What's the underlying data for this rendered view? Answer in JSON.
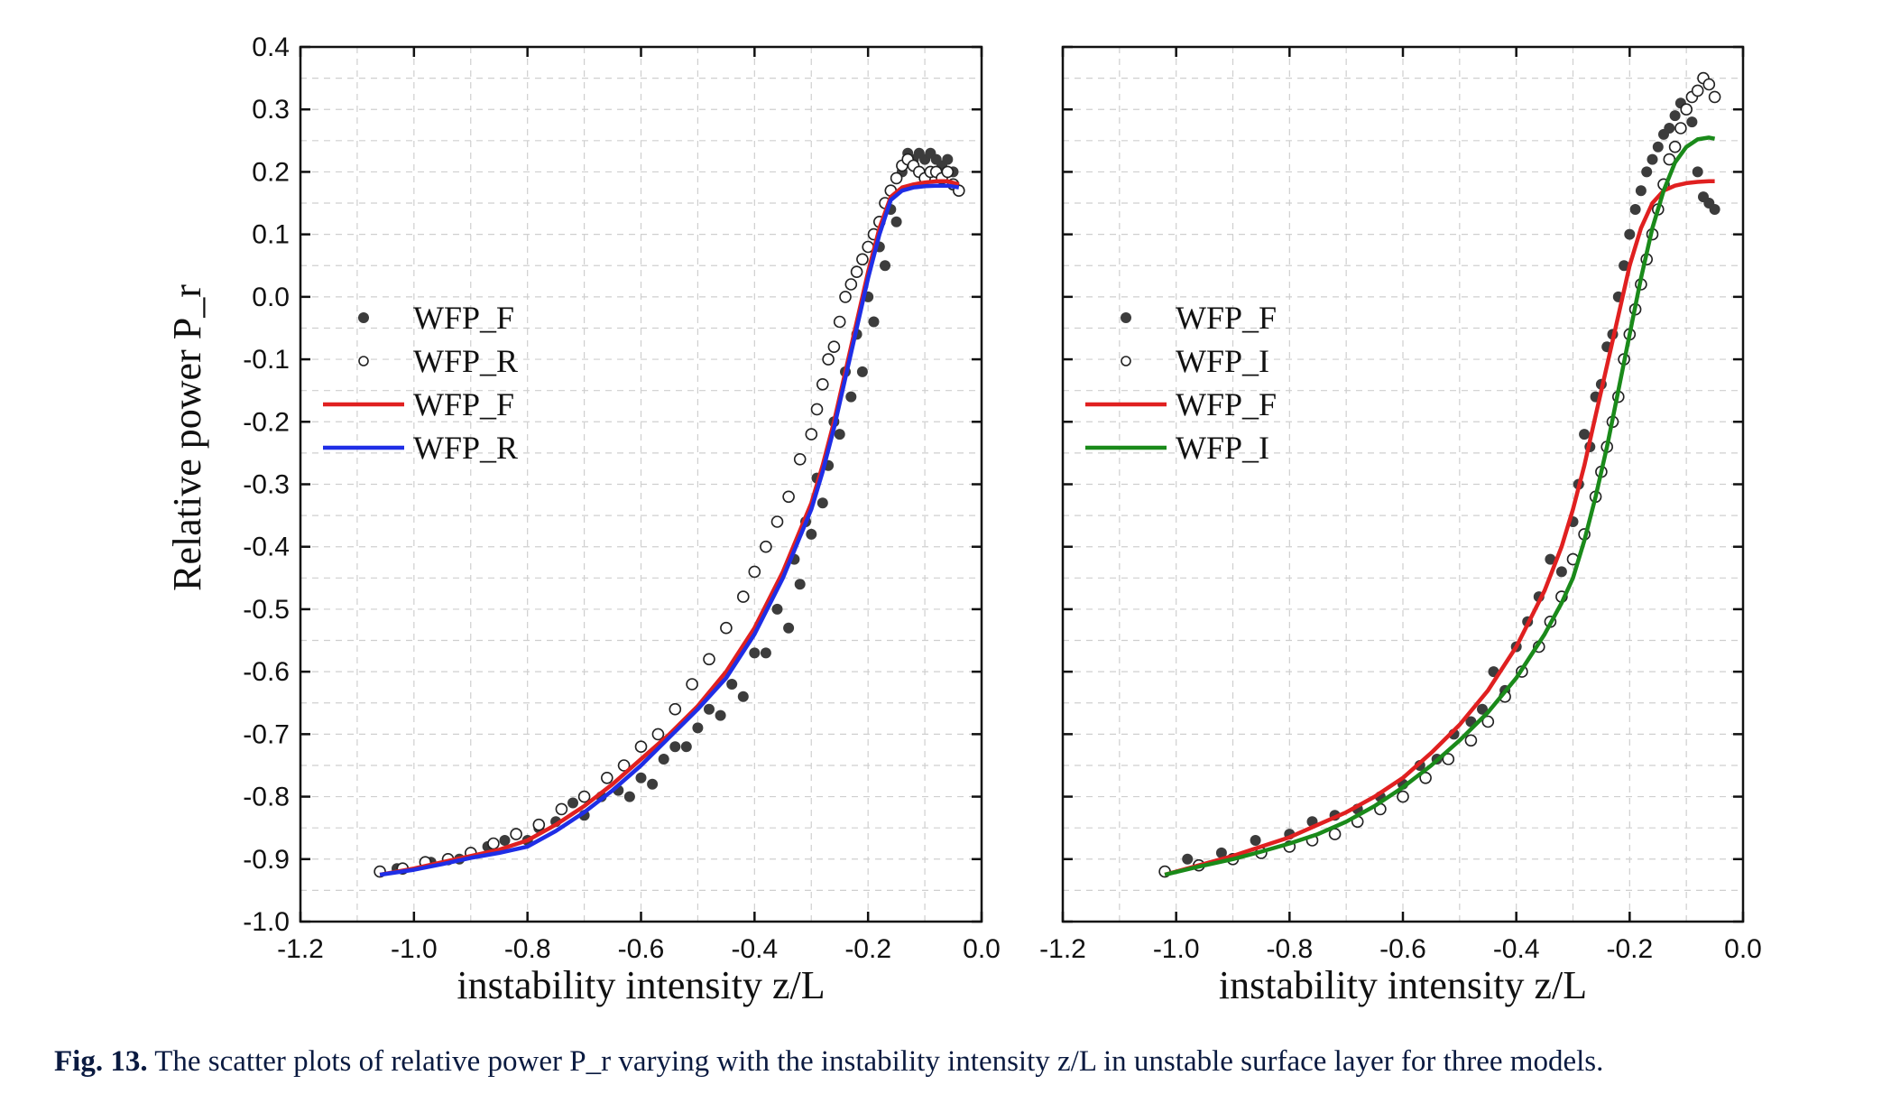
{
  "caption": {
    "label": "Fig. 13.",
    "text": "The scatter plots of relative power P_r varying with the instability intensity z/L in unstable surface layer for three models."
  },
  "shared_ylabel": "Relative power P_r",
  "chart_data": [
    {
      "type": "scatter",
      "xlabel": "instability intensity z/L",
      "ylabel": "Relative power P_r",
      "xlim": [
        -1.2,
        0.0
      ],
      "ylim": [
        -1.0,
        0.4
      ],
      "x_ticks": [
        "-1.2",
        "-1.0",
        "-0.8",
        "-0.6",
        "-0.4",
        "-0.2",
        "0.0"
      ],
      "y_ticks": [
        "0.4",
        "0.3",
        "0.2",
        "0.1",
        "0.0",
        "-0.1",
        "-0.2",
        "-0.3",
        "-0.4",
        "-0.5",
        "-0.6",
        "-0.7",
        "-0.8",
        "-0.9",
        "-1.0"
      ],
      "grid": true,
      "legend_placement": "upper-left",
      "series": [
        {
          "name": "WFP_F",
          "kind": "scatter-filled",
          "color": "#3c3c3c",
          "x": [
            -1.03,
            -0.97,
            -0.92,
            -0.87,
            -0.84,
            -0.8,
            -0.78,
            -0.75,
            -0.72,
            -0.7,
            -0.67,
            -0.64,
            -0.62,
            -0.6,
            -0.58,
            -0.56,
            -0.54,
            -0.52,
            -0.5,
            -0.48,
            -0.46,
            -0.44,
            -0.42,
            -0.4,
            -0.38,
            -0.36,
            -0.34,
            -0.33,
            -0.32,
            -0.31,
            -0.3,
            -0.29,
            -0.28,
            -0.27,
            -0.26,
            -0.25,
            -0.24,
            -0.23,
            -0.22,
            -0.21,
            -0.2,
            -0.19,
            -0.18,
            -0.17,
            -0.16,
            -0.15,
            -0.14,
            -0.13,
            -0.12,
            -0.11,
            -0.1,
            -0.09,
            -0.08,
            -0.07,
            -0.06,
            -0.05
          ],
          "y": [
            -0.915,
            -0.905,
            -0.9,
            -0.88,
            -0.87,
            -0.87,
            -0.85,
            -0.84,
            -0.81,
            -0.83,
            -0.8,
            -0.79,
            -0.8,
            -0.77,
            -0.78,
            -0.74,
            -0.72,
            -0.72,
            -0.69,
            -0.66,
            -0.67,
            -0.62,
            -0.64,
            -0.57,
            -0.57,
            -0.5,
            -0.53,
            -0.42,
            -0.46,
            -0.36,
            -0.38,
            -0.29,
            -0.33,
            -0.27,
            -0.2,
            -0.22,
            -0.12,
            -0.16,
            -0.06,
            -0.12,
            0.0,
            -0.04,
            0.08,
            0.05,
            0.14,
            0.12,
            0.2,
            0.23,
            0.22,
            0.23,
            0.22,
            0.23,
            0.22,
            0.21,
            0.22,
            0.2
          ]
        },
        {
          "name": "WFP_R",
          "kind": "scatter-open",
          "color": "#222222",
          "x": [
            -1.06,
            -1.02,
            -0.98,
            -0.94,
            -0.9,
            -0.86,
            -0.82,
            -0.78,
            -0.74,
            -0.7,
            -0.66,
            -0.63,
            -0.6,
            -0.57,
            -0.54,
            -0.51,
            -0.48,
            -0.45,
            -0.42,
            -0.4,
            -0.38,
            -0.36,
            -0.34,
            -0.32,
            -0.3,
            -0.29,
            -0.28,
            -0.27,
            -0.26,
            -0.25,
            -0.24,
            -0.23,
            -0.22,
            -0.21,
            -0.2,
            -0.19,
            -0.18,
            -0.17,
            -0.16,
            -0.15,
            -0.14,
            -0.13,
            -0.12,
            -0.11,
            -0.1,
            -0.09,
            -0.08,
            -0.07,
            -0.06,
            -0.05,
            -0.04
          ],
          "y": [
            -0.92,
            -0.915,
            -0.905,
            -0.9,
            -0.89,
            -0.875,
            -0.86,
            -0.845,
            -0.82,
            -0.8,
            -0.77,
            -0.75,
            -0.72,
            -0.7,
            -0.66,
            -0.62,
            -0.58,
            -0.53,
            -0.48,
            -0.44,
            -0.4,
            -0.36,
            -0.32,
            -0.26,
            -0.22,
            -0.18,
            -0.14,
            -0.1,
            -0.08,
            -0.04,
            0.0,
            0.02,
            0.04,
            0.06,
            0.08,
            0.1,
            0.12,
            0.15,
            0.17,
            0.19,
            0.21,
            0.22,
            0.21,
            0.2,
            0.19,
            0.2,
            0.2,
            0.19,
            0.2,
            0.18,
            0.17
          ]
        },
        {
          "name": "WFP_F",
          "kind": "line",
          "color": "#e02020",
          "x": [
            -1.06,
            -1.0,
            -0.95,
            -0.9,
            -0.85,
            -0.8,
            -0.75,
            -0.7,
            -0.65,
            -0.6,
            -0.55,
            -0.5,
            -0.45,
            -0.4,
            -0.35,
            -0.3,
            -0.28,
            -0.26,
            -0.24,
            -0.22,
            -0.2,
            -0.18,
            -0.16,
            -0.14,
            -0.12,
            -0.1,
            -0.08,
            -0.06,
            -0.04
          ],
          "y": [
            -0.925,
            -0.915,
            -0.905,
            -0.895,
            -0.885,
            -0.87,
            -0.845,
            -0.815,
            -0.78,
            -0.74,
            -0.7,
            -0.655,
            -0.6,
            -0.53,
            -0.44,
            -0.33,
            -0.27,
            -0.2,
            -0.12,
            -0.04,
            0.04,
            0.11,
            0.16,
            0.175,
            0.18,
            0.183,
            0.185,
            0.185,
            0.18
          ]
        },
        {
          "name": "WFP_R",
          "kind": "line",
          "color": "#1f2ee6",
          "x": [
            -1.06,
            -1.0,
            -0.95,
            -0.9,
            -0.85,
            -0.8,
            -0.75,
            -0.7,
            -0.65,
            -0.6,
            -0.55,
            -0.5,
            -0.45,
            -0.4,
            -0.35,
            -0.3,
            -0.28,
            -0.26,
            -0.24,
            -0.22,
            -0.2,
            -0.18,
            -0.16,
            -0.14,
            -0.12,
            -0.1,
            -0.08,
            -0.06,
            -0.04
          ],
          "y": [
            -0.925,
            -0.917,
            -0.908,
            -0.898,
            -0.89,
            -0.88,
            -0.855,
            -0.825,
            -0.79,
            -0.75,
            -0.705,
            -0.66,
            -0.61,
            -0.54,
            -0.45,
            -0.34,
            -0.28,
            -0.21,
            -0.13,
            -0.05,
            0.03,
            0.1,
            0.155,
            0.17,
            0.175,
            0.177,
            0.178,
            0.178,
            0.175
          ]
        }
      ]
    },
    {
      "type": "scatter",
      "xlabel": "instability intensity z/L",
      "ylabel": "",
      "xlim": [
        -1.2,
        0.0
      ],
      "ylim": [
        -1.0,
        0.4
      ],
      "x_ticks": [
        "-1.2",
        "-1.0",
        "-0.8",
        "-0.6",
        "-0.4",
        "-0.2",
        "0.0"
      ],
      "y_ticks": [],
      "grid": true,
      "legend_placement": "upper-left",
      "series": [
        {
          "name": "WFP_F",
          "kind": "scatter-filled",
          "color": "#3c3c3c",
          "x": [
            -0.98,
            -0.92,
            -0.86,
            -0.8,
            -0.76,
            -0.72,
            -0.68,
            -0.64,
            -0.6,
            -0.57,
            -0.54,
            -0.51,
            -0.48,
            -0.46,
            -0.44,
            -0.42,
            -0.4,
            -0.38,
            -0.36,
            -0.34,
            -0.32,
            -0.3,
            -0.29,
            -0.28,
            -0.27,
            -0.26,
            -0.25,
            -0.24,
            -0.23,
            -0.22,
            -0.21,
            -0.2,
            -0.19,
            -0.18,
            -0.17,
            -0.16,
            -0.15,
            -0.14,
            -0.13,
            -0.12,
            -0.11,
            -0.1,
            -0.09,
            -0.08,
            -0.07,
            -0.06,
            -0.05
          ],
          "y": [
            -0.9,
            -0.89,
            -0.87,
            -0.86,
            -0.84,
            -0.83,
            -0.82,
            -0.8,
            -0.78,
            -0.75,
            -0.74,
            -0.7,
            -0.68,
            -0.66,
            -0.6,
            -0.63,
            -0.56,
            -0.52,
            -0.48,
            -0.42,
            -0.44,
            -0.36,
            -0.3,
            -0.22,
            -0.24,
            -0.16,
            -0.14,
            -0.08,
            -0.06,
            0.0,
            0.05,
            0.1,
            0.14,
            0.17,
            0.2,
            0.22,
            0.24,
            0.26,
            0.27,
            0.29,
            0.31,
            0.3,
            0.28,
            0.2,
            0.16,
            0.15,
            0.14
          ]
        },
        {
          "name": "WFP_I",
          "kind": "scatter-open",
          "color": "#222222",
          "x": [
            -1.02,
            -0.96,
            -0.9,
            -0.85,
            -0.8,
            -0.76,
            -0.72,
            -0.68,
            -0.64,
            -0.6,
            -0.56,
            -0.52,
            -0.48,
            -0.45,
            -0.42,
            -0.39,
            -0.36,
            -0.34,
            -0.32,
            -0.3,
            -0.28,
            -0.26,
            -0.25,
            -0.24,
            -0.23,
            -0.22,
            -0.21,
            -0.2,
            -0.19,
            -0.18,
            -0.17,
            -0.16,
            -0.15,
            -0.14,
            -0.13,
            -0.12,
            -0.11,
            -0.1,
            -0.09,
            -0.08,
            -0.07,
            -0.06,
            -0.05
          ],
          "y": [
            -0.92,
            -0.91,
            -0.9,
            -0.89,
            -0.88,
            -0.87,
            -0.86,
            -0.84,
            -0.82,
            -0.8,
            -0.77,
            -0.74,
            -0.71,
            -0.68,
            -0.64,
            -0.6,
            -0.56,
            -0.52,
            -0.48,
            -0.42,
            -0.38,
            -0.32,
            -0.28,
            -0.24,
            -0.2,
            -0.16,
            -0.1,
            -0.06,
            -0.02,
            0.02,
            0.06,
            0.1,
            0.14,
            0.18,
            0.22,
            0.24,
            0.27,
            0.3,
            0.32,
            0.33,
            0.35,
            0.34,
            0.32
          ]
        },
        {
          "name": "WFP_F",
          "kind": "line",
          "color": "#e02020",
          "x": [
            -1.02,
            -0.96,
            -0.9,
            -0.85,
            -0.8,
            -0.75,
            -0.7,
            -0.65,
            -0.6,
            -0.55,
            -0.5,
            -0.45,
            -0.4,
            -0.35,
            -0.32,
            -0.3,
            -0.28,
            -0.26,
            -0.24,
            -0.22,
            -0.2,
            -0.18,
            -0.16,
            -0.14,
            -0.12,
            -0.1,
            -0.08,
            -0.06,
            -0.05
          ],
          "y": [
            -0.925,
            -0.91,
            -0.895,
            -0.88,
            -0.865,
            -0.845,
            -0.825,
            -0.8,
            -0.77,
            -0.73,
            -0.685,
            -0.63,
            -0.56,
            -0.47,
            -0.4,
            -0.34,
            -0.27,
            -0.19,
            -0.11,
            -0.03,
            0.05,
            0.11,
            0.15,
            0.17,
            0.178,
            0.182,
            0.184,
            0.185,
            0.185
          ]
        },
        {
          "name": "WFP_I",
          "kind": "line",
          "color": "#1a8a1a",
          "x": [
            -1.02,
            -0.96,
            -0.9,
            -0.85,
            -0.8,
            -0.75,
            -0.7,
            -0.65,
            -0.6,
            -0.55,
            -0.5,
            -0.45,
            -0.4,
            -0.35,
            -0.32,
            -0.3,
            -0.28,
            -0.26,
            -0.24,
            -0.22,
            -0.2,
            -0.18,
            -0.16,
            -0.14,
            -0.12,
            -0.1,
            -0.08,
            -0.06,
            -0.05
          ],
          "y": [
            -0.925,
            -0.912,
            -0.9,
            -0.888,
            -0.875,
            -0.86,
            -0.84,
            -0.815,
            -0.785,
            -0.75,
            -0.71,
            -0.665,
            -0.61,
            -0.54,
            -0.49,
            -0.45,
            -0.39,
            -0.32,
            -0.24,
            -0.15,
            -0.06,
            0.03,
            0.11,
            0.17,
            0.215,
            0.24,
            0.252,
            0.255,
            0.253
          ]
        }
      ]
    }
  ]
}
